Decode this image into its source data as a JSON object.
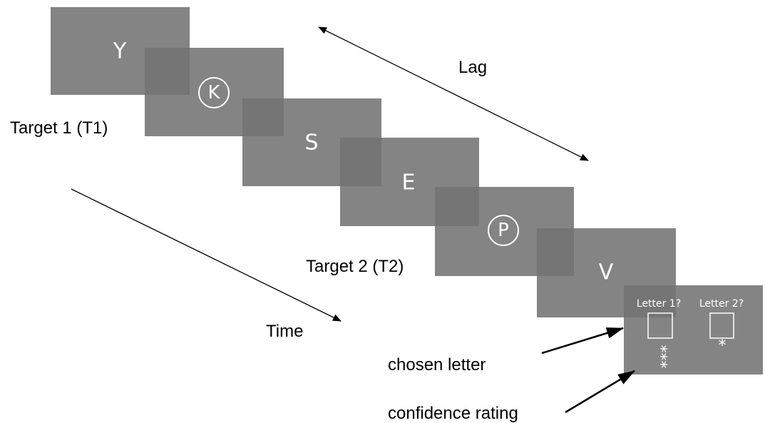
{
  "frames": [
    {
      "letter": "Y"
    },
    {
      "letter": "K"
    },
    {
      "letter": "S"
    },
    {
      "letter": "E"
    },
    {
      "letter": "P"
    },
    {
      "letter": "V"
    }
  ],
  "labels": {
    "target1": "Target 1 (T1)",
    "target2": "Target 2 (T2)",
    "lag": "Lag",
    "time": "Time",
    "chosen": "chosen letter",
    "confidence": "confidence rating"
  },
  "response": {
    "prompt1": "Letter 1?",
    "prompt2": "Letter 2?",
    "rating1": "***",
    "rating2": "*"
  }
}
